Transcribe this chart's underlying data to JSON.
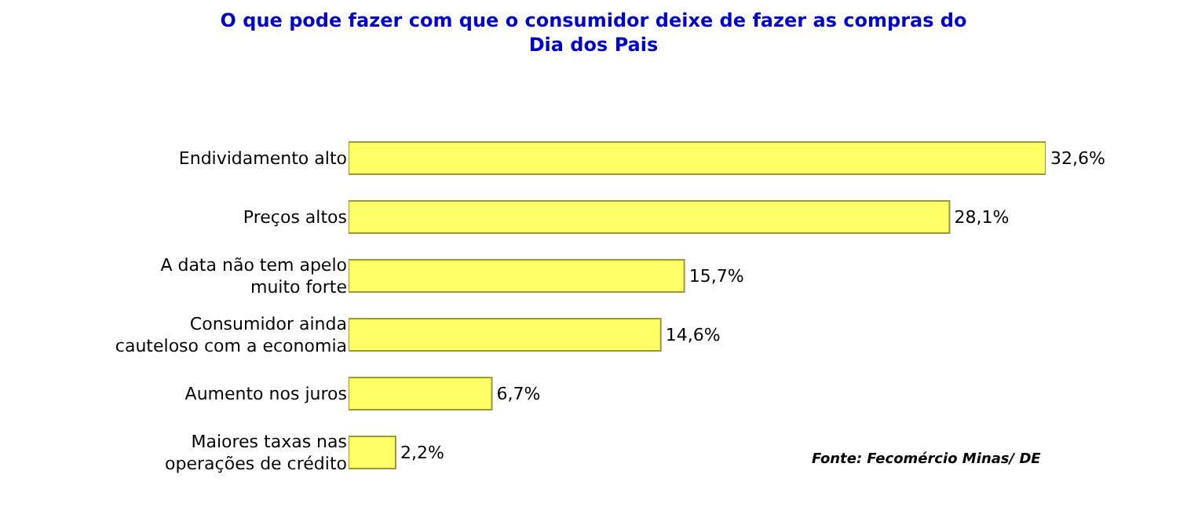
{
  "chart_data": {
    "type": "bar",
    "orientation": "horizontal",
    "title": "O que pode fazer com que o consumidor deixe de fazer as compras do Dia dos Pais",
    "categories": [
      "Endividamento alto",
      "Preços altos",
      "A data não tem apelo muito forte",
      "Consumidor ainda cauteloso com a economia",
      "Aumento nos juros",
      "Maiores taxas nas operações de crédito"
    ],
    "values": [
      32.6,
      28.1,
      15.7,
      14.6,
      6.7,
      2.2
    ],
    "value_labels": [
      "32,6%",
      "28,1%",
      "15,7%",
      "14,6%",
      "6,7%",
      "2,2%"
    ],
    "color": "#ffff66",
    "annotations": [
      "Fonte: Fecomércio Minas/ DE"
    ]
  }
}
